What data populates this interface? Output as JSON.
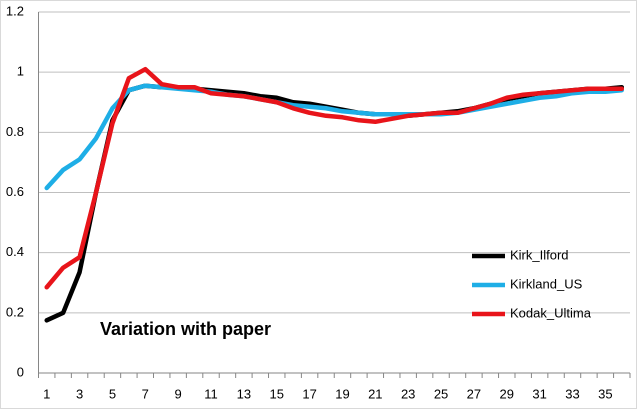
{
  "chart_data": {
    "type": "line",
    "annotation": "Variation with paper",
    "categories": [
      1,
      null,
      3,
      null,
      5,
      null,
      7,
      null,
      9,
      null,
      11,
      null,
      13,
      null,
      15,
      null,
      17,
      null,
      19,
      null,
      21,
      null,
      23,
      null,
      25,
      null,
      27,
      null,
      29,
      null,
      31,
      null,
      33,
      null,
      35,
      null
    ],
    "series": [
      {
        "name": "Kirk_Ilford",
        "color": "#000000",
        "values": [
          0.175,
          0.2,
          0.335,
          0.6,
          0.84,
          0.94,
          0.955,
          0.95,
          0.95,
          0.945,
          0.94,
          0.935,
          0.93,
          0.92,
          0.915,
          0.9,
          0.895,
          0.885,
          0.875,
          0.865,
          0.86,
          0.86,
          0.855,
          0.86,
          0.865,
          0.87,
          0.88,
          0.895,
          0.91,
          0.92,
          0.93,
          0.935,
          0.94,
          0.945,
          0.945,
          0.95
        ]
      },
      {
        "name": "Kirkland_US",
        "color": "#1eaee6",
        "values": [
          0.615,
          0.675,
          0.71,
          0.78,
          0.88,
          0.94,
          0.955,
          0.95,
          0.945,
          0.94,
          0.935,
          0.925,
          0.92,
          0.91,
          0.9,
          0.89,
          0.885,
          0.88,
          0.87,
          0.865,
          0.86,
          0.86,
          0.86,
          0.86,
          0.86,
          0.865,
          0.875,
          0.885,
          0.895,
          0.905,
          0.915,
          0.92,
          0.93,
          0.935,
          0.935,
          0.94
        ]
      },
      {
        "name": "Kodak_Ultima",
        "color": "#e8141a",
        "values": [
          0.285,
          0.35,
          0.385,
          0.6,
          0.83,
          0.98,
          1.01,
          0.96,
          0.95,
          0.95,
          0.93,
          0.925,
          0.92,
          0.91,
          0.9,
          0.88,
          0.865,
          0.855,
          0.85,
          0.84,
          0.835,
          0.845,
          0.855,
          0.86,
          0.865,
          0.865,
          0.88,
          0.895,
          0.915,
          0.925,
          0.93,
          0.935,
          0.94,
          0.945,
          0.945,
          0.945
        ]
      }
    ],
    "ylim": [
      0,
      1.2
    ],
    "yticks": [
      0,
      0.2,
      0.4,
      0.6,
      0.8,
      1,
      1.2
    ],
    "grid": true,
    "legend": "right"
  }
}
